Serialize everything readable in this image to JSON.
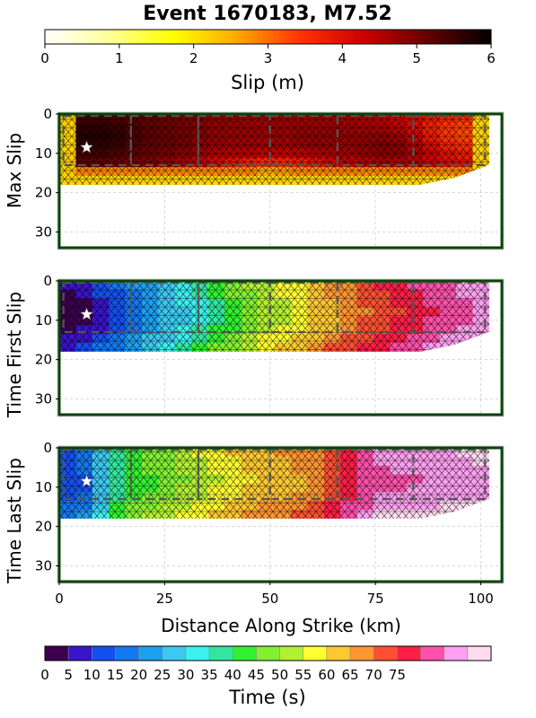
{
  "title": "Event 1670183, M7.52",
  "slip_colorbar": {
    "label": "Slip (m)",
    "ticks": [
      0,
      1,
      2,
      3,
      4,
      5,
      6
    ],
    "colors": [
      "#ffffff",
      "#ffff99",
      "#ffff00",
      "#ffaa00",
      "#ff3300",
      "#cc0000",
      "#660000",
      "#000000"
    ]
  },
  "time_colorbar": {
    "label": "Time (s)",
    "ticks": [
      0,
      5,
      10,
      15,
      20,
      25,
      30,
      35,
      40,
      45,
      50,
      55,
      60,
      65,
      70,
      75
    ],
    "colors": [
      "#3d0050",
      "#3a14c8",
      "#1450f0",
      "#1478f0",
      "#1ea0f0",
      "#3cc8f0",
      "#3cf0f0",
      "#32e6a0",
      "#32f032",
      "#82f032",
      "#b4f032",
      "#ffff32",
      "#ffc832",
      "#ff9632",
      "#ff5032",
      "#ff1e46",
      "#ff50aa",
      "#ffa0f0",
      "#ffdcf0"
    ]
  },
  "colors": {
    "frame": "#0a420a",
    "grid": "#cccccc",
    "fault_outline": "#555555",
    "hypocenter": "#ffffff"
  },
  "chart_data": [
    {
      "type": "heatmap",
      "panel": "max-slip",
      "ylabel": "Max Slip",
      "xlim": [
        0,
        105
      ],
      "ylim": [
        34,
        0
      ],
      "yticks": [
        0,
        10,
        20,
        30
      ],
      "rupture_extent_km": {
        "along_strike": [
          0,
          102
        ],
        "depth": [
          0,
          18
        ]
      },
      "hypocenter": {
        "x": 6.5,
        "depth": 8.5
      },
      "value_field": "slip_m",
      "value_range": [
        0,
        6
      ],
      "patches": [
        {
          "x": 10,
          "depth": 6,
          "slip_m": 5.9
        },
        {
          "x": 25,
          "depth": 7,
          "slip_m": 5.2
        },
        {
          "x": 45,
          "depth": 8,
          "slip_m": 4.8
        },
        {
          "x": 60,
          "depth": 7,
          "slip_m": 5.0
        },
        {
          "x": 78,
          "depth": 8,
          "slip_m": 5.2
        },
        {
          "x": 95,
          "depth": 5,
          "slip_m": 3.0
        },
        {
          "x": 50,
          "depth": 16,
          "slip_m": 1.6
        }
      ]
    },
    {
      "type": "heatmap",
      "panel": "time-first-slip",
      "ylabel": "Time First Slip",
      "xlim": [
        0,
        105
      ],
      "ylim": [
        34,
        0
      ],
      "yticks": [
        0,
        10,
        20,
        30
      ],
      "rupture_extent_km": {
        "along_strike": [
          0,
          102
        ],
        "depth": [
          0,
          18
        ]
      },
      "hypocenter": {
        "x": 6.5,
        "depth": 8.5
      },
      "value_field": "time_s",
      "value_range": [
        0,
        80
      ],
      "isochrons": [
        {
          "x": 5,
          "time_s": 2
        },
        {
          "x": 15,
          "time_s": 12
        },
        {
          "x": 30,
          "time_s": 25
        },
        {
          "x": 45,
          "time_s": 40
        },
        {
          "x": 60,
          "time_s": 50
        },
        {
          "x": 75,
          "time_s": 60
        },
        {
          "x": 90,
          "time_s": 68
        },
        {
          "x": 100,
          "time_s": 72
        }
      ]
    },
    {
      "type": "heatmap",
      "panel": "time-last-slip",
      "ylabel": "Time Last Slip",
      "xlabel": "Distance Along Strike (km)",
      "xlim": [
        0,
        105
      ],
      "ylim": [
        34,
        0
      ],
      "xticks": [
        0,
        25,
        50,
        75,
        100
      ],
      "yticks": [
        0,
        10,
        20,
        30
      ],
      "rupture_extent_km": {
        "along_strike": [
          0,
          102
        ],
        "depth": [
          0,
          18
        ]
      },
      "hypocenter": {
        "x": 6.5,
        "depth": 8.5
      },
      "value_field": "time_s",
      "value_range": [
        0,
        80
      ],
      "isochrons": [
        {
          "x": 5,
          "time_s": 10
        },
        {
          "x": 15,
          "time_s": 33
        },
        {
          "x": 30,
          "time_s": 42
        },
        {
          "x": 45,
          "time_s": 50
        },
        {
          "x": 60,
          "time_s": 55
        },
        {
          "x": 75,
          "time_s": 70
        },
        {
          "x": 90,
          "time_s": 72
        },
        {
          "x": 100,
          "time_s": 74
        }
      ]
    }
  ]
}
